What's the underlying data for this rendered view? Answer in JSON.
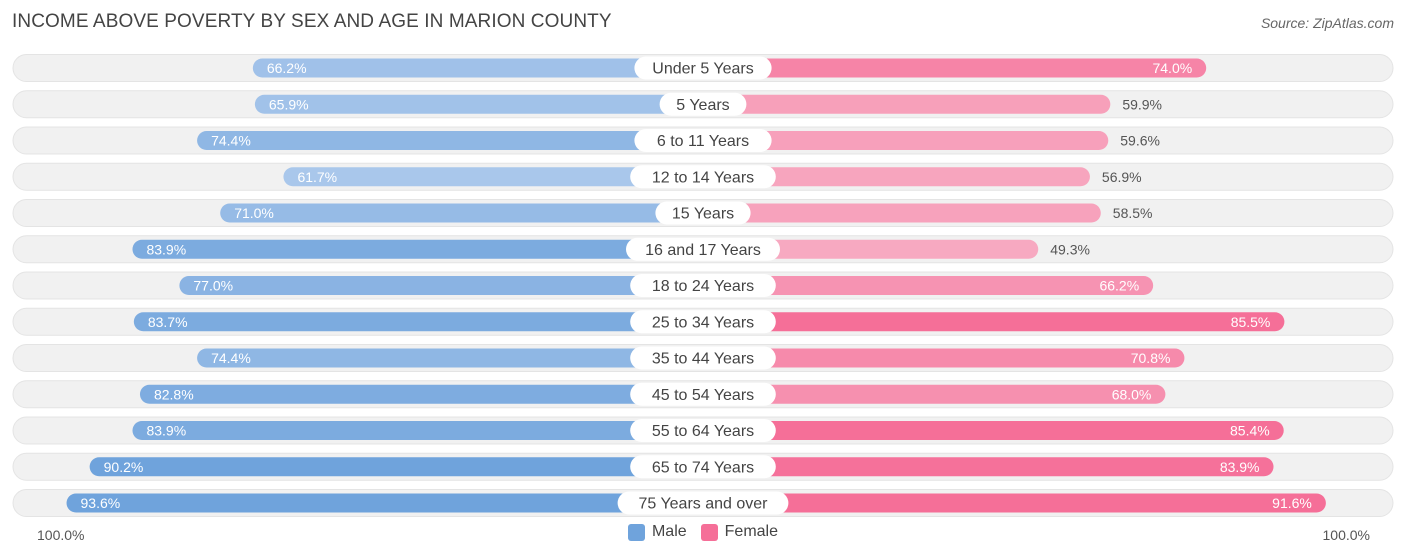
{
  "title": "INCOME ABOVE POVERTY BY SEX AND AGE IN MARION COUNTY",
  "source": "Source: ZipAtlas.com",
  "colors": {
    "male": "#6fa3dc",
    "male_light": "#adc9ec",
    "female": "#f56f98",
    "female_light": "#f7a9c1",
    "track": "#f1f1f1"
  },
  "legend": {
    "male_label": "Male",
    "female_label": "Female"
  },
  "axis": {
    "left_label": "100.0%",
    "right_label": "100.0%"
  },
  "chart_data": {
    "type": "bar",
    "orientation": "horizontal-diverging",
    "title": "INCOME ABOVE POVERTY BY SEX AND AGE IN MARION COUNTY",
    "xlim": [
      0,
      100
    ],
    "categories": [
      "Under 5 Years",
      "5 Years",
      "6 to 11 Years",
      "12 to 14 Years",
      "15 Years",
      "16 and 17 Years",
      "18 to 24 Years",
      "25 to 34 Years",
      "35 to 44 Years",
      "45 to 54 Years",
      "55 to 64 Years",
      "65 to 74 Years",
      "75 Years and over"
    ],
    "series": [
      {
        "name": "Male",
        "values": [
          66.2,
          65.9,
          74.4,
          61.7,
          71.0,
          83.9,
          77.0,
          83.7,
          74.4,
          82.8,
          83.9,
          90.2,
          93.6
        ],
        "labels": [
          "66.2%",
          "65.9%",
          "74.4%",
          "61.7%",
          "71.0%",
          "83.9%",
          "77.0%",
          "83.7%",
          "74.4%",
          "82.8%",
          "83.9%",
          "90.2%",
          "93.6%"
        ]
      },
      {
        "name": "Female",
        "values": [
          74.0,
          59.9,
          59.6,
          56.9,
          58.5,
          49.3,
          66.2,
          85.5,
          70.8,
          68.0,
          85.4,
          83.9,
          91.6
        ],
        "labels": [
          "74.0%",
          "59.9%",
          "59.6%",
          "56.9%",
          "58.5%",
          "49.3%",
          "66.2%",
          "85.5%",
          "70.8%",
          "68.0%",
          "85.4%",
          "83.9%",
          "91.6%"
        ]
      }
    ]
  }
}
